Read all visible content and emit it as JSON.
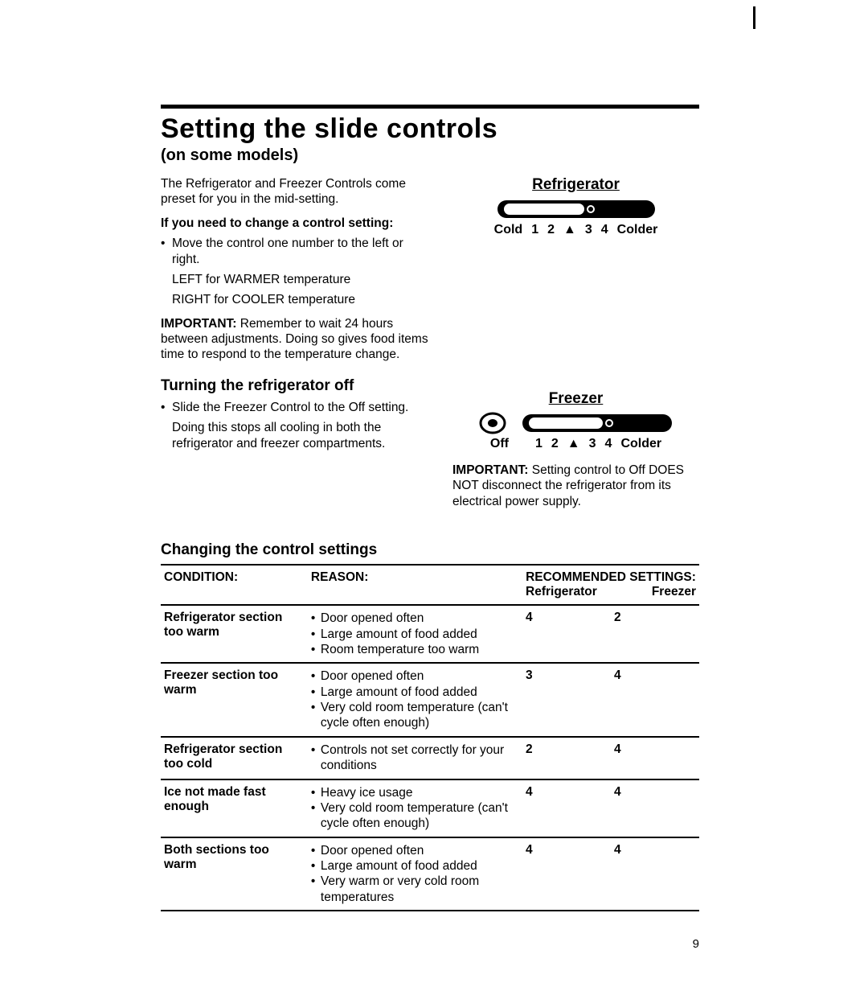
{
  "title": "Setting the slide controls",
  "subtitle": "(on some models)",
  "intro": "The Refrigerator and Freezer Controls come preset for you in the mid-setting.",
  "change_heading": "If you need to change a control setting:",
  "change_bullet": "Move the control one number to the left or right.",
  "change_left": "LEFT for WARMER temperature",
  "change_right": "RIGHT for COOLER temperature",
  "important1_label": "IMPORTANT:",
  "important1_text": " Remember to wait 24 hours between adjustments. Doing so gives food items time to respond to the temperature change.",
  "turn_off_heading": "Turning the refrigerator off",
  "turn_off_bullet": "Slide the Freezer Control to the Off setting.",
  "turn_off_text": "Doing this stops all cooling in both the refrigerator and freezer compartments.",
  "refrigerator_control": {
    "label": "Refrigerator",
    "left_label": "Cold",
    "right_label": "Colder",
    "ticks": [
      "1",
      "2",
      "▲",
      "3",
      "4"
    ]
  },
  "freezer_control": {
    "label": "Freezer",
    "off_label": "Off",
    "right_label": "Colder",
    "ticks": [
      "1",
      "2",
      "▲",
      "3",
      "4"
    ]
  },
  "important2_label": "IMPORTANT:",
  "important2_text": " Setting control to Off DOES NOT disconnect the refrigerator from its electrical power supply.",
  "table_heading": "Changing the control settings",
  "table": {
    "headers": {
      "condition": "CONDITION:",
      "reason": "REASON:",
      "recommended": "RECOMMENDED SETTINGS:",
      "refrigerator": "Refrigerator",
      "freezer": "Freezer"
    },
    "rows": [
      {
        "condition": "Refrigerator section too warm",
        "reasons": [
          "Door opened often",
          "Large amount of food added",
          "Room temperature too warm"
        ],
        "refrigerator": "4",
        "freezer": "2"
      },
      {
        "condition": "Freezer section too warm",
        "reasons": [
          "Door opened often",
          "Large amount of food added",
          "Very cold room temperature (can't cycle often enough)"
        ],
        "refrigerator": "3",
        "freezer": "4"
      },
      {
        "condition": "Refrigerator section too cold",
        "reasons": [
          "Controls not set correctly for your conditions"
        ],
        "refrigerator": "2",
        "freezer": "4"
      },
      {
        "condition": "Ice not made fast enough",
        "reasons": [
          "Heavy ice usage",
          "Very cold room temperature (can't cycle often enough)"
        ],
        "refrigerator": "4",
        "freezer": "4"
      },
      {
        "condition": "Both sections too warm",
        "reasons": [
          "Door opened often",
          "Large amount of food added",
          "Very warm or very cold room temperatures"
        ],
        "refrigerator": "4",
        "freezer": "4"
      }
    ]
  },
  "page_number": "9"
}
